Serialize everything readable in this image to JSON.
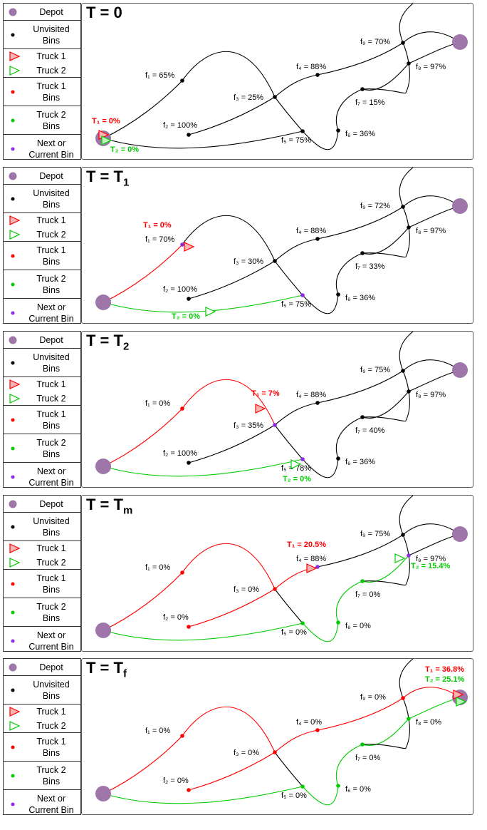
{
  "legend": {
    "depot": "Depot",
    "unvisited": "Unvisited\nBins",
    "truck1": "Truck 1",
    "truck2": "Truck 2",
    "truck1_bins": "Truck 1\nBins",
    "truck2_bins": "Truck 2\nBins",
    "next_bin": "Next or\nCurrent Bin"
  },
  "colors": {
    "depot": "#9e76aa",
    "unvisited": "#000000",
    "truck1": "#ff0000",
    "truck1_fill": "#f8b4b4",
    "truck2": "#00cc00",
    "truck2_fill": "#baf5ba",
    "next": "#8a2be2"
  },
  "panels": [
    {
      "title": "T = 0",
      "title_main": "T = T",
      "title_sub": "",
      "bins": {
        "f1": "f₁ = 65%",
        "f2": "f₂ = 100%",
        "f3": "f₃ = 25%",
        "f4": "f₄ = 88%",
        "f5": "f₅ = 75%",
        "f6": "f₆ = 36%",
        "f7": "f₇ = 15%",
        "f8": "f₈ = 97%",
        "f9": "f₉ = 70%"
      },
      "t1": "T₁ = 0%",
      "t2": "T₂ = 0%"
    },
    {
      "title": "T = T1",
      "title_main": "T = T",
      "title_sub": "1",
      "bins": {
        "f1": "f₁ = 70%",
        "f2": "f₂ = 100%",
        "f3": "f₃ = 30%",
        "f4": "f₄ = 88%",
        "f5": "f₅ = 75%",
        "f6": "f₆ = 36%",
        "f7": "f₇ = 33%",
        "f8": "f₈ = 97%",
        "f9": "f₉ = 72%"
      },
      "t1": "T₁ = 0%",
      "t2": "T₂ = 0%"
    },
    {
      "title": "T = T2",
      "title_main": "T = T",
      "title_sub": "2",
      "bins": {
        "f1": "f₁ = 0%",
        "f2": "f₂ = 100%",
        "f3": "f₃ = 35%",
        "f4": "f₄ = 88%",
        "f5": "f₅ = 78%",
        "f6": "f₆ = 36%",
        "f7": "f₇ = 40%",
        "f8": "f₈ = 97%",
        "f9": "f₉ = 75%"
      },
      "t1": "T₁ = 7%",
      "t2": "T₂ = 0%"
    },
    {
      "title": "T = Tm",
      "title_main": "T = T",
      "title_sub": "m",
      "bins": {
        "f1": "f₁ = 0%",
        "f2": "f₂ = 0%",
        "f3": "f₃ = 0%",
        "f4": "f₄ = 88%",
        "f5": "f₅ = 0%",
        "f6": "f₆ = 0%",
        "f7": "f₇ = 0%",
        "f8": "f₈ = 97%",
        "f9": "f₉ = 75%"
      },
      "t1": "T₁ = 20.5%",
      "t2": "T₂ = 15.4%"
    },
    {
      "title": "T = Tf",
      "title_main": "T = T",
      "title_sub": "f",
      "bins": {
        "f1": "f₁ = 0%",
        "f2": "f₂ = 0%",
        "f3": "f₃ = 0%",
        "f4": "f₄ = 0%",
        "f5": "f₅ = 0%",
        "f6": "f₆ = 0%",
        "f7": "f₇ = 0%",
        "f8": "f₈ = 0%",
        "f9": "f₉ = 0%"
      },
      "t1": "T₁ = 36.8%",
      "t2": "T₂ = 25.1%"
    }
  ]
}
